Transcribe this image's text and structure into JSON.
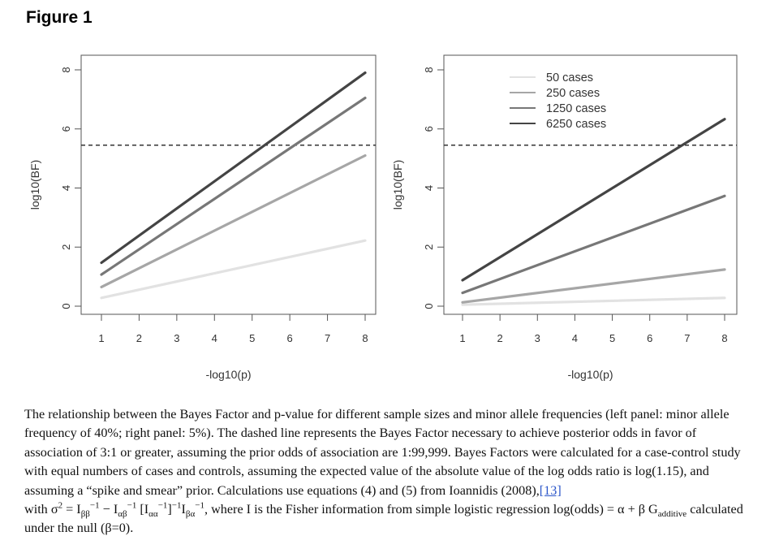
{
  "figure_title": "Figure 1",
  "colors": {
    "series": [
      "#e2e2e2",
      "#a6a6a6",
      "#777777",
      "#444444"
    ],
    "threshold": "#333333",
    "link": "#2a55c9"
  },
  "chart_data": [
    {
      "type": "line",
      "xlabel": "-log10(p)",
      "ylabel": "log10(BF)",
      "xlim": [
        1,
        8
      ],
      "ylim": [
        0,
        8
      ],
      "x_ticks": [
        "1",
        "2",
        "3",
        "4",
        "5",
        "6",
        "7",
        "8"
      ],
      "y_ticks": [
        "0",
        "2",
        "4",
        "6",
        "8"
      ],
      "threshold": 5.45,
      "legend": null,
      "series": [
        {
          "x": [
            1,
            8
          ],
          "y": [
            0.28,
            2.22
          ]
        },
        {
          "x": [
            1,
            8
          ],
          "y": [
            0.65,
            5.1
          ]
        },
        {
          "x": [
            1,
            8
          ],
          "y": [
            1.07,
            7.05
          ]
        },
        {
          "x": [
            1,
            8
          ],
          "y": [
            1.47,
            7.9
          ]
        }
      ]
    },
    {
      "type": "line",
      "xlabel": "-log10(p)",
      "ylabel": "log10(BF)",
      "xlim": [
        1,
        8
      ],
      "ylim": [
        0,
        8
      ],
      "x_ticks": [
        "1",
        "2",
        "3",
        "4",
        "5",
        "6",
        "7",
        "8"
      ],
      "y_ticks": [
        "0",
        "2",
        "4",
        "6",
        "8"
      ],
      "threshold": 5.45,
      "legend": "top-right",
      "series": [
        {
          "name": "50 cases",
          "x": [
            1,
            8
          ],
          "y": [
            0.05,
            0.28
          ]
        },
        {
          "name": "250 cases",
          "x": [
            1,
            8
          ],
          "y": [
            0.13,
            1.24
          ]
        },
        {
          "name": "1250 cases",
          "x": [
            1,
            8
          ],
          "y": [
            0.45,
            3.73
          ]
        },
        {
          "name": "6250 cases",
          "x": [
            1,
            8
          ],
          "y": [
            0.88,
            6.33
          ]
        }
      ]
    }
  ],
  "caption": {
    "part1": "The relationship between the Bayes Factor and p-value for different sample sizes and minor allele frequencies (left panel: minor allele frequency of 40%; right panel: 5%). The dashed line represents the Bayes Factor necessary to achieve posterior odds in favor of association of 3:1 or greater, assuming the prior odds of association are 1:99,999. Bayes Factors were calculated for a case-control study with equal numbers of cases and controls, assuming the expected value of the absolute value of the log odds ratio is log(1.15), and assuming a “spike and smear” prior. Calculations use equations (4) and (5) from Ioannidis (2008),",
    "ref_link": "[13]",
    "formula_with": "with σ",
    "sq": "2",
    "eq1": " = I",
    "s_bb": "ββ",
    "inv": "−1",
    "minus": " − I",
    "s_ab": "αβ",
    "bracket_open": " [I",
    "s_aa": "αα",
    "bracket_close": "]",
    "i_text": "I",
    "s_ba": "βα",
    "part2": ", where I is the Fisher information from simple logistic regression log(odds) = α + β G",
    "sub_additive": "additive",
    "part3": " calculated under the null (β=0)."
  }
}
